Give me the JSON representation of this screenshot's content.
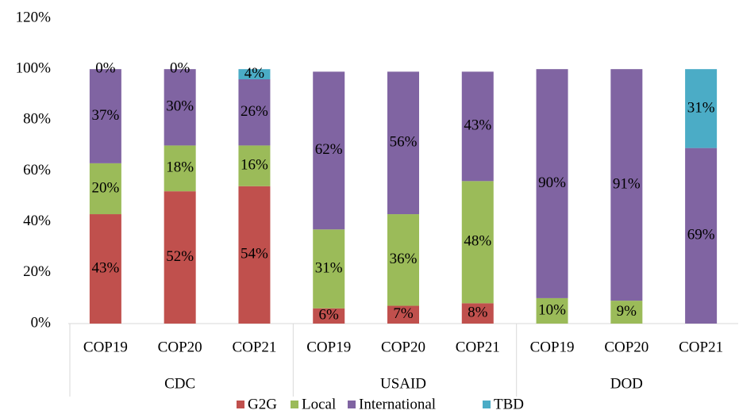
{
  "chart_data": {
    "type": "stacked_bar",
    "groups": [
      "CDC",
      "USAID",
      "DOD"
    ],
    "categories": [
      "COP19",
      "COP20",
      "COP21",
      "COP19",
      "COP20",
      "COP21",
      "COP19",
      "COP20",
      "COP21"
    ],
    "series": [
      {
        "name": "G2G",
        "color": "#c0504d",
        "values": [
          43,
          52,
          54,
          6,
          7,
          8,
          0,
          0,
          0
        ],
        "value_labels": [
          "43%",
          "52%",
          "54%",
          "6%",
          "7%",
          "8%",
          null,
          null,
          null
        ]
      },
      {
        "name": "Local",
        "color": "#9bbb59",
        "values": [
          20,
          18,
          16,
          31,
          36,
          48,
          10,
          9,
          0
        ],
        "value_labels": [
          "20%",
          "18%",
          "16%",
          "31%",
          "36%",
          "48%",
          "10%",
          "9%",
          null
        ]
      },
      {
        "name": "International",
        "color": "#8064a2",
        "values": [
          37,
          30,
          26,
          62,
          56,
          43,
          90,
          91,
          69
        ],
        "value_labels": [
          "37%",
          "30%",
          "26%",
          "62%",
          "56%",
          "43%",
          "90%",
          "91%",
          "69%"
        ]
      },
      {
        "name": "TBD",
        "color": "#4bacc6",
        "values": [
          0,
          0,
          4,
          0,
          0,
          0,
          0,
          0,
          31
        ],
        "value_labels": [
          "0%",
          "0%",
          "4%",
          null,
          null,
          null,
          null,
          null,
          "31%"
        ]
      }
    ],
    "ylim": [
      0,
      120
    ],
    "yticks": [
      {
        "value": 0,
        "label": "0%"
      },
      {
        "value": 20,
        "label": "20%"
      },
      {
        "value": 40,
        "label": "40%"
      },
      {
        "value": 60,
        "label": "60%"
      },
      {
        "value": 80,
        "label": "80%"
      },
      {
        "value": 100,
        "label": "100%"
      },
      {
        "value": 120,
        "label": "120%"
      }
    ],
    "legend": "bottom",
    "grid": false
  }
}
